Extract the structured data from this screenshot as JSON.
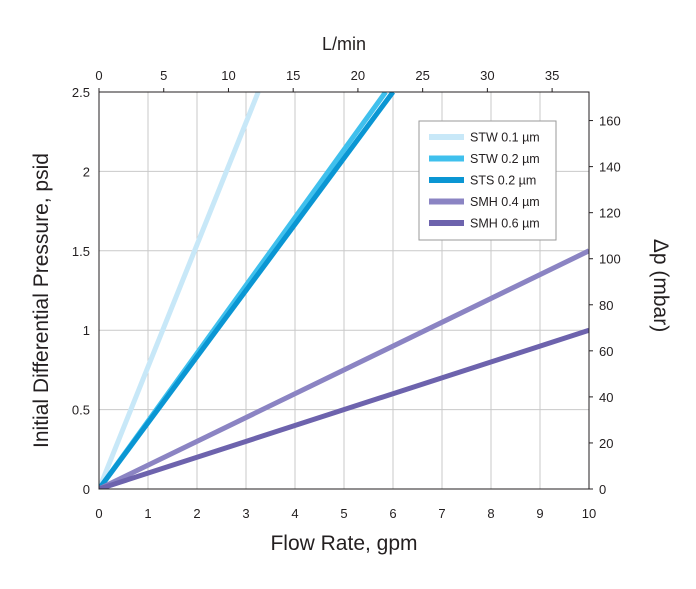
{
  "chart_data": {
    "type": "line",
    "xlabel": "Flow Rate, gpm",
    "ylabel": "Initial Differential Pressure, psid",
    "x2label": "L/min",
    "y2label": "Δp (mbar)",
    "xlim": [
      0,
      10
    ],
    "ylim": [
      0,
      2.5
    ],
    "x2lim": [
      0,
      37.85
    ],
    "y2lim": [
      0,
      172.4
    ],
    "xticks": [
      "0",
      "1",
      "2",
      "3",
      "4",
      "5",
      "6",
      "7",
      "8",
      "9",
      "10"
    ],
    "yticks": [
      "0",
      "0.5",
      "1",
      "1.5",
      "2",
      "2.5"
    ],
    "x2ticks": [
      "0",
      "5",
      "10",
      "15",
      "20",
      "25",
      "30",
      "35"
    ],
    "y2ticks": [
      "0",
      "20",
      "40",
      "60",
      "80",
      "100",
      "120",
      "140",
      "160"
    ],
    "grid": true,
    "legend_position": "top-right",
    "series": [
      {
        "name": "STW 0.1 µm",
        "color": "#c8e8f8",
        "x": [
          0,
          3.25
        ],
        "y": [
          0,
          2.5
        ]
      },
      {
        "name": "STW 0.2 µm",
        "color": "#3fc0ed",
        "x": [
          0,
          5.85
        ],
        "y": [
          0,
          2.5
        ]
      },
      {
        "name": "STS 0.2 µm",
        "color": "#0a96d3",
        "x": [
          0,
          6.0
        ],
        "y": [
          0,
          2.5
        ]
      },
      {
        "name": "SMH 0.4 µm",
        "color": "#8b84c3",
        "x": [
          0,
          10
        ],
        "y": [
          0,
          1.5
        ]
      },
      {
        "name": "SMH 0.6 µm",
        "color": "#6d63ad",
        "x": [
          0,
          10
        ],
        "y": [
          0,
          1.0
        ]
      }
    ]
  }
}
